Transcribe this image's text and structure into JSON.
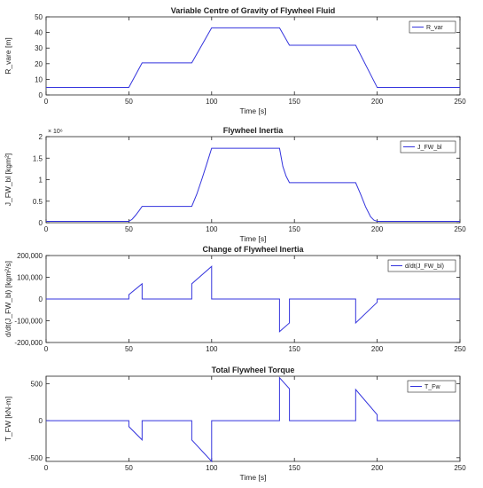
{
  "colors": {
    "line": "#3333dd",
    "axis": "#222222",
    "background": "#ffffff"
  },
  "chart_data": [
    {
      "type": "line",
      "title": "Variable Centre of Gravity of Flywheel Fluid",
      "xlabel": "Time [s]",
      "ylabel": "R_vare  [m]",
      "legend": "R_var",
      "legend_position": "top-right",
      "xlim": [
        0,
        250
      ],
      "ylim": [
        0,
        50
      ],
      "xticks": [
        0,
        50,
        100,
        150,
        200,
        250
      ],
      "yticks": [
        0,
        10,
        20,
        30,
        40,
        50
      ],
      "ytick_labels": [
        "0",
        "10",
        "20",
        "30",
        "40",
        "50"
      ],
      "y_exponent": "",
      "x": [
        0,
        50,
        58,
        88,
        100,
        141,
        147,
        187,
        200,
        250
      ],
      "y": [
        4.8,
        4.8,
        20.5,
        20.5,
        43,
        43,
        31.8,
        31.8,
        4.8,
        4.8
      ]
    },
    {
      "type": "line",
      "title": "Flywheel Inertia",
      "xlabel": "Time [s]",
      "ylabel": "J_FW_bl  [kgm²]",
      "legend": "J_FW_bl",
      "legend_position": "top-right",
      "xlim": [
        0,
        250
      ],
      "ylim": [
        0,
        2
      ],
      "xticks": [
        0,
        50,
        100,
        150,
        200,
        250
      ],
      "yticks": [
        0,
        0.5,
        1,
        1.5,
        2
      ],
      "ytick_labels": [
        "0",
        "0.5",
        "1",
        "1.5",
        "2"
      ],
      "y_exponent": "× 10⁶",
      "x": [
        0,
        50,
        52,
        54,
        56,
        58,
        88,
        91,
        94,
        97,
        100,
        141,
        143,
        145,
        147,
        187,
        190,
        193,
        196,
        198,
        200,
        250
      ],
      "y": [
        0.03,
        0.03,
        0.08,
        0.17,
        0.27,
        0.38,
        0.38,
        0.66,
        1.0,
        1.36,
        1.73,
        1.73,
        1.31,
        1.08,
        0.93,
        0.93,
        0.66,
        0.37,
        0.14,
        0.06,
        0.03,
        0.03
      ]
    },
    {
      "type": "line",
      "title": "Change of Flywheel Inertia",
      "xlabel": "",
      "ylabel": "d/dt(J_FW_bl)  [kgm²/s]",
      "legend": "d/dt(J_FW_bl)",
      "legend_position": "top-right",
      "xlim": [
        0,
        250
      ],
      "ylim": [
        -200000,
        200000
      ],
      "xticks": [
        0,
        50,
        100,
        150,
        200,
        250
      ],
      "yticks": [
        -200000,
        -100000,
        0,
        100000,
        200000
      ],
      "ytick_labels": [
        "-200,000",
        "-100,000",
        "0",
        "100,000",
        "200,000"
      ],
      "y_exponent": "",
      "x": [
        0,
        50,
        50,
        58,
        58,
        88,
        88,
        100,
        100,
        141,
        141,
        147,
        147,
        187,
        187,
        200,
        200,
        250
      ],
      "y": [
        0,
        0,
        20000,
        70000,
        0,
        0,
        70000,
        150000,
        0,
        0,
        -150000,
        -110000,
        0,
        0,
        -110000,
        -15000,
        0,
        0
      ]
    },
    {
      "type": "line",
      "title": "Total Flywheel Torque",
      "xlabel": "Time [s]",
      "ylabel": "T_FW  [kN·m]",
      "legend": "T_Fw",
      "legend_position": "top-right",
      "xlim": [
        0,
        250
      ],
      "ylim": [
        -550,
        600
      ],
      "xticks": [
        0,
        50,
        100,
        150,
        200,
        250
      ],
      "yticks": [
        -500,
        0,
        500
      ],
      "ytick_labels": [
        "-500",
        "0",
        "500"
      ],
      "y_exponent": "",
      "x": [
        0,
        50,
        50,
        58,
        58,
        88,
        88,
        100,
        100,
        141,
        141,
        147,
        147,
        187,
        187,
        200,
        200,
        250
      ],
      "y": [
        0,
        0,
        -80,
        -260,
        0,
        0,
        -260,
        -550,
        0,
        0,
        580,
        430,
        0,
        0,
        420,
        80,
        0,
        0
      ]
    }
  ]
}
